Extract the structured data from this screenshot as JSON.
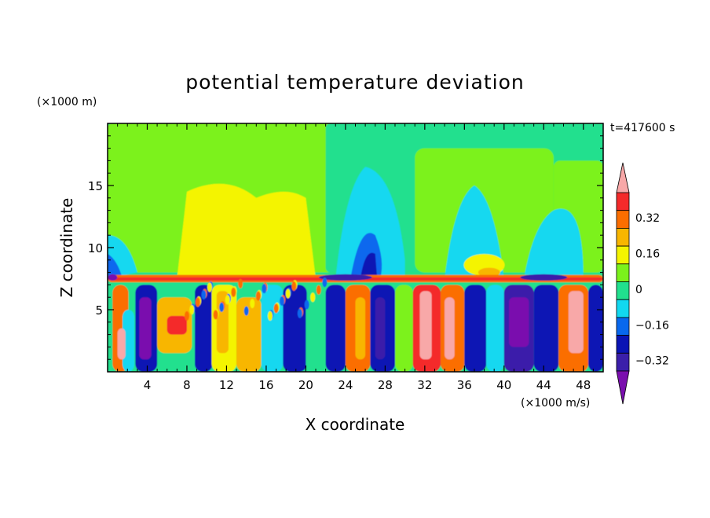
{
  "chart_data": {
    "type": "heatmap",
    "title": "potential temperature deviation",
    "xlabel": "X coordinate",
    "ylabel": "Z coordinate",
    "x_unit": "(×1000 m/s)",
    "y_unit": "(×1000 m)",
    "time_label": "t=417600 s",
    "xlim": [
      0,
      50
    ],
    "ylim": [
      0,
      20
    ],
    "x_ticks": [
      4,
      8,
      12,
      16,
      20,
      24,
      28,
      32,
      36,
      40,
      44,
      48
    ],
    "y_ticks": [
      5,
      10,
      15
    ],
    "colorbar": {
      "levels": [
        -0.48,
        -0.4,
        -0.32,
        -0.24,
        -0.16,
        -0.08,
        0,
        0.08,
        0.16,
        0.24,
        0.32,
        0.4
      ],
      "labels": [
        "0.32",
        "0.16",
        "0",
        "−0.16",
        "−0.32"
      ],
      "label_values": [
        0.32,
        0.16,
        0,
        -0.16,
        -0.32
      ],
      "colors": [
        "#7a0fae",
        "#3b1faa",
        "#0a14b4",
        "#0868ee",
        "#12d8f0",
        "#21e08e",
        "#7bf21c",
        "#f4f400",
        "#f8b600",
        "#fb6e00",
        "#f42a2a",
        "#f8a8a8"
      ]
    },
    "background_color": "#21e08e"
  }
}
